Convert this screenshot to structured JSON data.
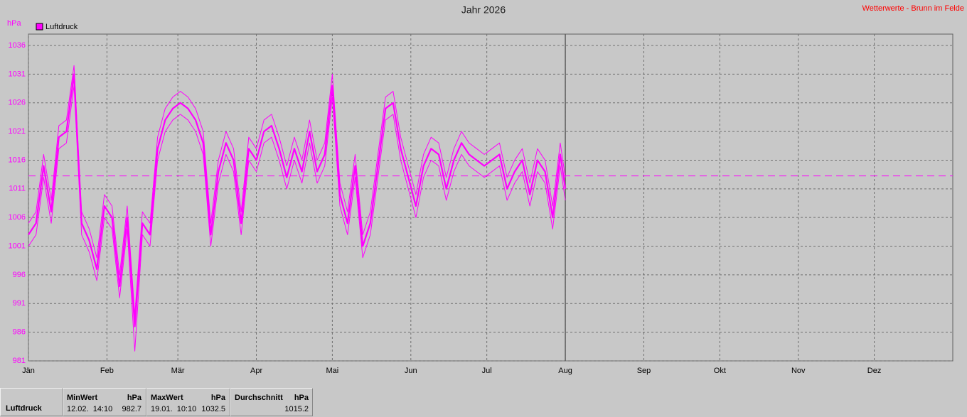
{
  "chart_data": {
    "type": "line",
    "title": "Jahr 2026",
    "source": "Wetterwerte - Brunn im Felde",
    "y_unit": "hPa",
    "x": [
      0,
      3,
      6,
      9,
      12,
      15,
      18,
      21,
      24,
      27,
      30,
      33,
      36,
      39,
      42,
      45,
      48,
      51,
      54,
      57,
      60,
      63,
      66,
      69,
      72,
      75,
      78,
      81,
      84,
      87,
      90,
      93,
      96,
      99,
      102,
      105,
      108,
      111,
      114,
      117,
      120,
      123,
      126,
      129,
      132,
      135,
      138,
      141,
      144,
      147,
      150,
      153,
      156,
      159,
      162,
      165,
      168,
      171,
      174,
      177,
      180,
      183,
      186,
      189,
      192,
      195,
      198,
      201,
      204,
      207,
      210,
      212
    ],
    "xlim": [
      0,
      365
    ],
    "xticks": [
      {
        "value": 0,
        "label": "Jän"
      },
      {
        "value": 31,
        "label": "Feb"
      },
      {
        "value": 59,
        "label": "Mär"
      },
      {
        "value": 90,
        "label": "Apr"
      },
      {
        "value": 120,
        "label": "Mai"
      },
      {
        "value": 151,
        "label": "Jun"
      },
      {
        "value": 181,
        "label": "Jul"
      },
      {
        "value": 212,
        "label": "Aug"
      },
      {
        "value": 243,
        "label": "Sep"
      },
      {
        "value": 273,
        "label": "Okt"
      },
      {
        "value": 304,
        "label": "Nov"
      },
      {
        "value": 334,
        "label": "Dez"
      }
    ],
    "ylim": [
      981,
      1036
    ],
    "yticks": [
      981,
      986,
      991,
      996,
      1001,
      1006,
      1011,
      1016,
      1021,
      1026,
      1031,
      1036
    ],
    "grid": true,
    "reference_line": 1013.25,
    "series": [
      {
        "name": "Luftdruck",
        "color": "#ff00ff",
        "values": [
          1003,
          1005,
          1015,
          1007,
          1020,
          1021,
          1031,
          1005,
          1002,
          997,
          1008,
          1006,
          994,
          1006,
          987,
          1005,
          1003,
          1018,
          1023,
          1025,
          1026,
          1025,
          1023,
          1019,
          1003,
          1014,
          1019,
          1016,
          1005,
          1018,
          1016,
          1021,
          1022,
          1018,
          1013,
          1018,
          1014,
          1021,
          1014,
          1017,
          1029,
          1010,
          1005,
          1015,
          1001,
          1005,
          1015,
          1025,
          1026,
          1018,
          1013,
          1008,
          1015,
          1018,
          1017,
          1011,
          1016,
          1019,
          1017,
          1016,
          1015,
          1016,
          1017,
          1011,
          1014,
          1016,
          1010,
          1016,
          1014,
          1006,
          1017,
          1011
        ]
      },
      {
        "color": "#ff00ff",
        "values": [
          1005,
          1007,
          1017,
          1009,
          1022,
          1023,
          1032.5,
          1007,
          1004,
          999,
          1010,
          1008,
          996,
          1008,
          989,
          1007,
          1005,
          1020,
          1025,
          1027,
          1028,
          1027,
          1025,
          1021,
          1005,
          1016,
          1021,
          1018,
          1007,
          1020,
          1018,
          1023,
          1024,
          1020,
          1015,
          1020,
          1016,
          1023,
          1016,
          1019,
          1031,
          1012,
          1007,
          1017,
          1003,
          1007,
          1017,
          1027,
          1028,
          1020,
          1015,
          1010,
          1017,
          1020,
          1019,
          1013,
          1018,
          1021,
          1019,
          1018,
          1017,
          1018,
          1019,
          1013,
          1016,
          1018,
          1012,
          1018,
          1016,
          1008,
          1019,
          1013
        ]
      },
      {
        "color": "#ff00ff",
        "values": [
          1001,
          1003,
          1013,
          1005,
          1018,
          1019,
          1029,
          1003,
          1000,
          995,
          1006,
          1004,
          992,
          1004,
          982.7,
          1003,
          1001,
          1016,
          1021,
          1023,
          1024,
          1023,
          1021,
          1017,
          1001,
          1012,
          1017,
          1014,
          1003,
          1016,
          1014,
          1019,
          1020,
          1016,
          1011,
          1016,
          1012,
          1019,
          1012,
          1015,
          1027,
          1008,
          1003,
          1013,
          999,
          1003,
          1013,
          1023,
          1024,
          1016,
          1011,
          1006,
          1013,
          1016,
          1015,
          1009,
          1014,
          1017,
          1015,
          1014,
          1013,
          1014,
          1015,
          1009,
          1012,
          1014,
          1008,
          1014,
          1012,
          1004,
          1015,
          1009
        ]
      }
    ]
  },
  "stats": {
    "label": "Luftdruck",
    "columns": [
      {
        "header": "MinWert",
        "unit": "hPa",
        "time": "12.02.  14:10",
        "value": "982.7"
      },
      {
        "header": "MaxWert",
        "unit": "hPa",
        "time": "19.01.  10:10",
        "value": "1032.5"
      },
      {
        "header": "Durchschnitt",
        "unit": "hPa",
        "value": "1015.2"
      }
    ]
  }
}
